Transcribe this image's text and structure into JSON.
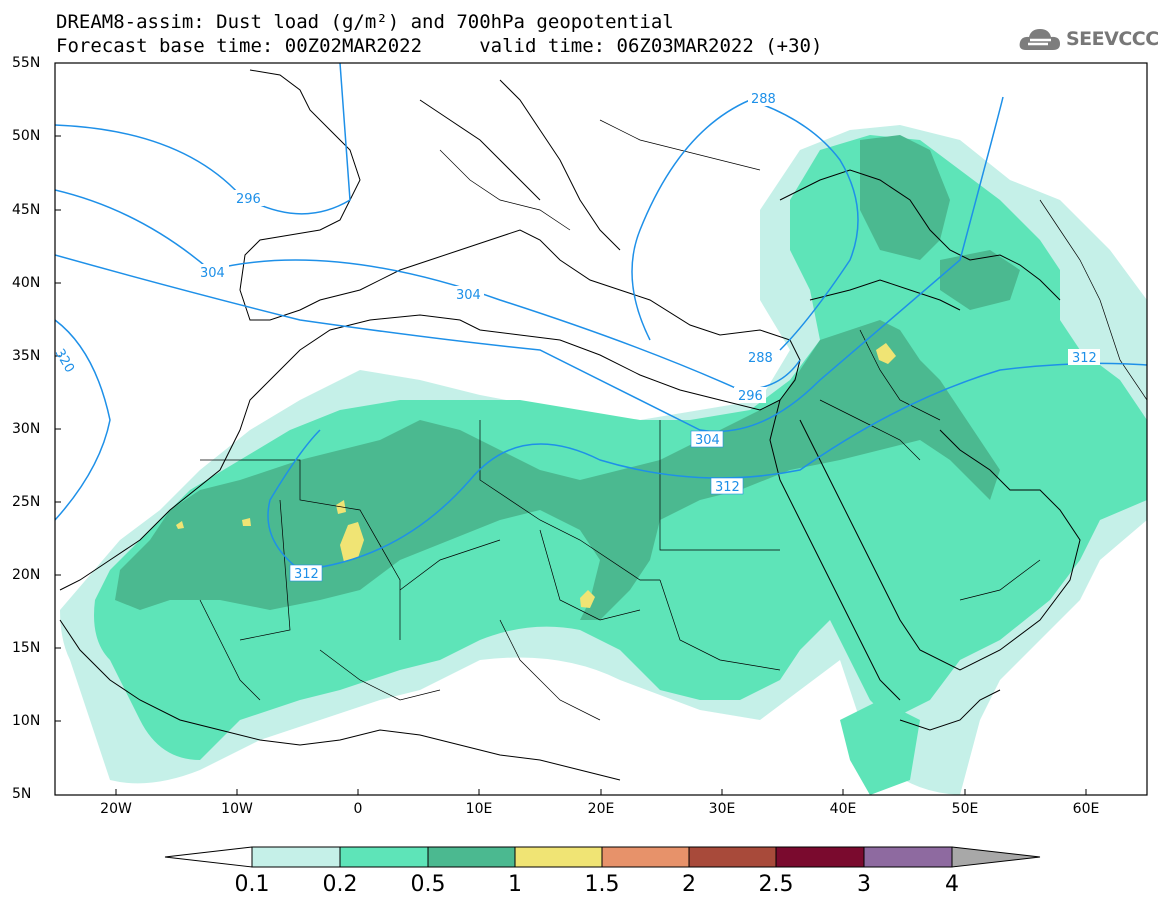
{
  "title_line1": "DREAM8-assim: Dust load (g/m²) and 700hPa geopotential",
  "title_line2": "Forecast base time: 00Z02MAR2022     valid time: 06Z03MAR2022 (+30)",
  "logo_text": "SEEVCCC",
  "map": {
    "lon_range": [
      -25,
      65
    ],
    "lat_range": [
      5,
      55
    ],
    "lat_ticks": [
      "55N",
      "50N",
      "45N",
      "40N",
      "35N",
      "30N",
      "25N",
      "20N",
      "15N",
      "10N",
      "5N"
    ],
    "lon_ticks": [
      "20W",
      "10W",
      "0",
      "10E",
      "20E",
      "30E",
      "40E",
      "50E",
      "60E"
    ],
    "contour_labels": [
      "296",
      "304",
      "288",
      "304",
      "320",
      "288",
      "312",
      "296",
      "304",
      "312",
      "312"
    ],
    "contour_color": "#1e90e8"
  },
  "colorbar": {
    "labels": [
      "0.1",
      "0.2",
      "0.5",
      "1",
      "1.5",
      "2",
      "2.5",
      "3",
      "4"
    ],
    "colors": [
      "#ffffff",
      "#c5f0e8",
      "#5ee4b8",
      "#4bb990",
      "#f0e474",
      "#e7926a",
      "#a84a3a",
      "#7a0a2e",
      "#8e6aa0",
      "#a8a8a8"
    ]
  }
}
